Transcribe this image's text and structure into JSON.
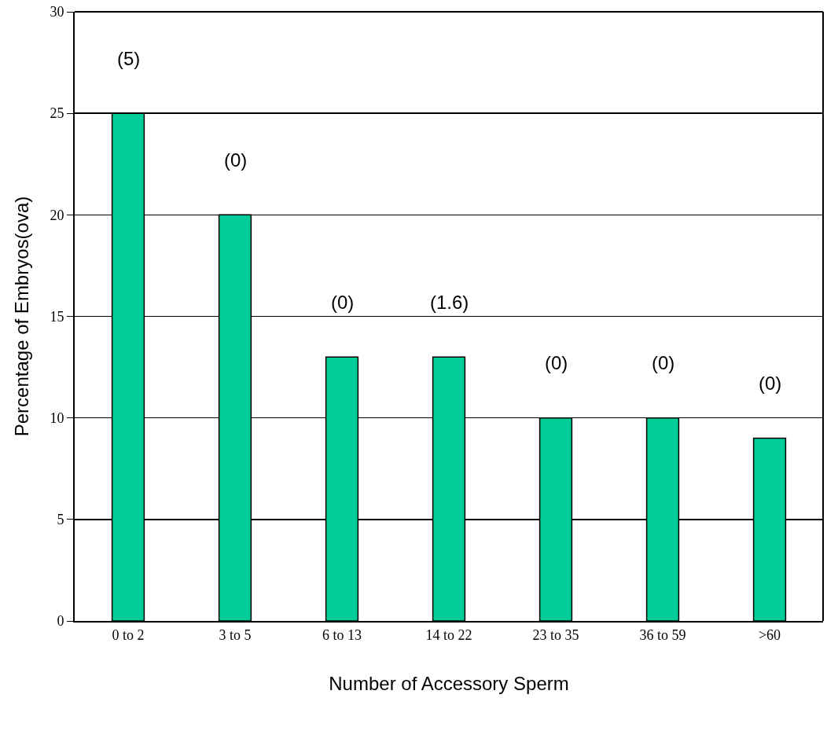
{
  "chart_data": {
    "type": "bar",
    "xlabel": "Number of Accessory Sperm",
    "ylabel": "Percentage of Embryos(ova)",
    "categories": [
      "0 to 2",
      "3 to 5",
      "6 to 13",
      "14 to 22",
      "23 to 35",
      "36 to 59",
      ">60"
    ],
    "values": [
      25,
      20,
      13,
      13,
      10,
      10,
      9
    ],
    "color": "#00cc99",
    "annotations": [
      "(5)",
      "(0)",
      "(0)",
      "(1.6)",
      "(0)",
      "(0)",
      "(0)"
    ],
    "ylim": [
      0,
      30
    ],
    "yticks": [
      0,
      5,
      10,
      15,
      20,
      25,
      30
    ],
    "grid": "y"
  }
}
